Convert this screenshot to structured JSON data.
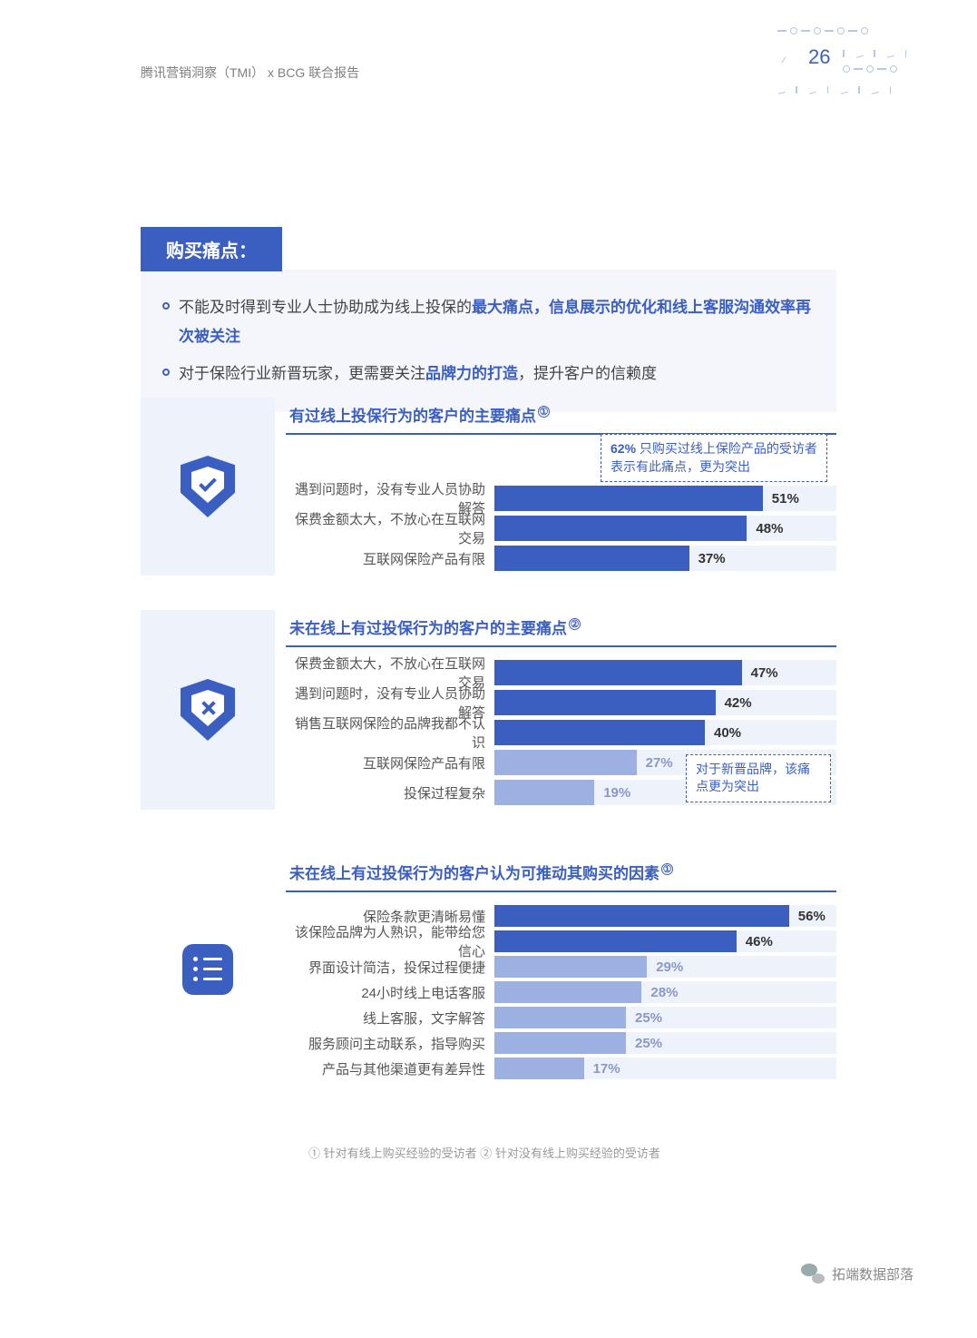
{
  "header": {
    "text": "腾讯营销洞察（TMI） x  BCG 联合报告"
  },
  "page_number": "26",
  "section_title": "购买痛点：",
  "bullets": [
    {
      "pre": "不能及时得到专业人士协助成为线上投保的",
      "hl1": "最大痛点，信息展示的优化和线上客服沟通效率再次被关注",
      "post": ""
    },
    {
      "pre": "对于保险行业新晋玩家，更需要关注",
      "hl1": "品牌力的打造",
      "post": "，提升客户的信赖度"
    }
  ],
  "chart1": {
    "title": "有过线上投保行为的客户的主要痛点",
    "sup": "①",
    "callout_bold": "62%",
    "callout_rest": " 只购买过线上保险产品的受访者表示有此痛点，更为突出",
    "max": 65,
    "bar_color_dark": "#3b5fc0",
    "track_color": "#eef2fb",
    "rows": [
      {
        "label": "遇到问题时，没有专业人员协助解答",
        "value": 51,
        "pct": "51%"
      },
      {
        "label": "保费金额太大，不放心在互联网交易",
        "value": 48,
        "pct": "48%"
      },
      {
        "label": "互联网保险产品有限",
        "value": 37,
        "pct": "37%"
      }
    ]
  },
  "chart2": {
    "title": "未在线上有过投保行为的客户的主要痛点",
    "sup": "②",
    "callout": "对于新晋品牌，该痛点更为突出",
    "max": 65,
    "bar_color_dark": "#3b5fc0",
    "bar_color_light": "#9db0e2",
    "rows": [
      {
        "label": "保费金额太大，不放心在互联网交易",
        "value": 47,
        "pct": "47%",
        "dark": true
      },
      {
        "label": "遇到问题时，没有专业人员协助解答",
        "value": 42,
        "pct": "42%",
        "dark": true
      },
      {
        "label": "销售互联网保险的品牌我都不认识",
        "value": 40,
        "pct": "40%",
        "dark": true
      },
      {
        "label": "互联网保险产品有限",
        "value": 27,
        "pct": "27%",
        "dark": false
      },
      {
        "label": "投保过程复杂",
        "value": 19,
        "pct": "19%",
        "dark": false
      }
    ]
  },
  "chart3": {
    "title": "未在线上有过投保行为的客户认为可推动其购买的因素",
    "sup": "①",
    "max": 65,
    "bar_color_dark": "#3b5fc0",
    "bar_color_light": "#9db0e2",
    "rows": [
      {
        "label": "保险条款更清晰易懂",
        "value": 56,
        "pct": "56%",
        "dark": true
      },
      {
        "label": "该保险品牌为人熟识，能带给您信心",
        "value": 46,
        "pct": "46%",
        "dark": true
      },
      {
        "label": "界面设计简洁，投保过程便捷",
        "value": 29,
        "pct": "29%",
        "dark": false
      },
      {
        "label": "24小时线上电话客服",
        "value": 28,
        "pct": "28%",
        "dark": false
      },
      {
        "label": "线上客服，文字解答",
        "value": 25,
        "pct": "25%",
        "dark": false
      },
      {
        "label": "服务顾问主动联系，指导购买",
        "value": 25,
        "pct": "25%",
        "dark": false
      },
      {
        "label": "产品与其他渠道更有差异性",
        "value": 17,
        "pct": "17%",
        "dark": false
      }
    ]
  },
  "footnote": "① 针对有线上购买经验的受访者  ② 针对没有线上购买经验的受访者",
  "wechat": "拓端数据部落"
}
